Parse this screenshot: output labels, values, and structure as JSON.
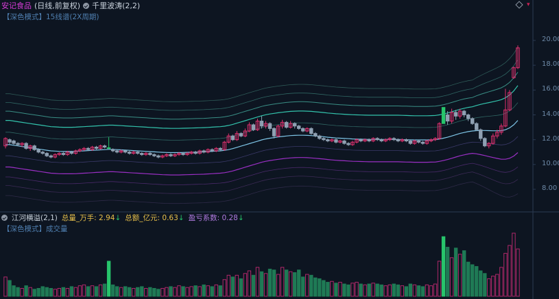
{
  "header": {
    "stock_name": "安记食品",
    "period": "(日线,前复权)",
    "indicator": "千里波涛(2,2)",
    "sub_mode": "【深色模式】",
    "sub_text": "15线谱(2X周期)"
  },
  "price_axis": {
    "ticks": [
      "20.00",
      "18.00",
      "16.00",
      "14.00",
      "12.00",
      "10.00",
      "8.00"
    ],
    "min": 6.4,
    "max": 21.6
  },
  "volume_panel": {
    "indicator": "江河横溢(2,1)",
    "vol_label": "总量_万手:",
    "vol_value": "2.94",
    "amt_label": "总额_亿元:",
    "amt_value": "0.63",
    "pl_label": "盈亏系数:",
    "pl_value": "0.28",
    "sub_mode": "【深色模式】",
    "sub_text": "成交量"
  },
  "colors": {
    "up": "#e0306e",
    "down": "#8fa0b2",
    "limit_up": "#27c46b",
    "stock_name": "#d63bd6",
    "vol_up": "#b0286a",
    "vol_down": "#1f7a55"
  },
  "chart_data": {
    "type": "candlestick",
    "candles": [
      [
        11.5,
        12.1,
        11.3,
        12.2
      ],
      [
        12.0,
        11.8,
        11.6,
        12.1
      ],
      [
        11.9,
        11.7,
        11.6,
        12.0
      ],
      [
        11.7,
        11.6,
        11.5,
        11.8
      ],
      [
        11.6,
        11.7,
        11.4,
        11.8
      ],
      [
        11.7,
        11.3,
        11.2,
        11.8
      ],
      [
        11.3,
        11.5,
        11.1,
        11.6
      ],
      [
        11.5,
        11.2,
        11.1,
        11.6
      ],
      [
        11.2,
        11.0,
        10.9,
        11.3
      ],
      [
        11.0,
        10.9,
        10.8,
        11.1
      ],
      [
        10.9,
        10.7,
        10.6,
        11.0
      ],
      [
        10.7,
        10.6,
        10.5,
        10.8
      ],
      [
        10.6,
        10.8,
        10.5,
        10.9
      ],
      [
        10.8,
        10.9,
        10.7,
        11.0
      ],
      [
        10.9,
        10.8,
        10.7,
        11.0
      ],
      [
        10.8,
        11.0,
        10.7,
        11.1
      ],
      [
        11.0,
        10.9,
        10.8,
        11.1
      ],
      [
        10.9,
        11.1,
        10.8,
        11.2
      ],
      [
        11.1,
        11.2,
        11.0,
        11.3
      ],
      [
        11.2,
        11.3,
        11.1,
        11.4
      ],
      [
        11.3,
        11.2,
        11.1,
        11.4
      ],
      [
        11.2,
        11.4,
        11.1,
        11.5
      ],
      [
        11.4,
        11.3,
        11.2,
        11.5
      ],
      [
        11.3,
        11.5,
        11.2,
        11.6
      ],
      [
        11.5,
        11.4,
        11.3,
        11.6
      ],
      [
        11.35,
        11.35,
        11.3,
        12.2
      ],
      [
        11.2,
        11.1,
        11.0,
        11.3
      ],
      [
        11.1,
        11.0,
        10.9,
        11.2
      ],
      [
        11.0,
        11.1,
        10.9,
        11.2
      ],
      [
        11.1,
        11.0,
        10.9,
        11.2
      ],
      [
        11.0,
        10.9,
        10.8,
        11.1
      ],
      [
        10.9,
        11.0,
        10.8,
        11.1
      ],
      [
        11.0,
        10.9,
        10.8,
        11.1
      ],
      [
        10.9,
        10.8,
        10.7,
        11.0
      ],
      [
        10.8,
        10.9,
        10.7,
        11.0
      ],
      [
        10.9,
        10.8,
        10.7,
        11.0
      ],
      [
        10.8,
        10.7,
        10.6,
        10.9
      ],
      [
        10.7,
        10.6,
        10.5,
        10.8
      ],
      [
        10.6,
        10.7,
        10.5,
        10.8
      ],
      [
        10.7,
        10.8,
        10.6,
        10.9
      ],
      [
        10.8,
        10.7,
        10.6,
        10.9
      ],
      [
        10.7,
        10.8,
        10.6,
        10.9
      ],
      [
        10.8,
        10.9,
        10.7,
        11.0
      ],
      [
        10.9,
        10.8,
        10.7,
        11.0
      ],
      [
        10.8,
        10.9,
        10.7,
        11.0
      ],
      [
        10.9,
        11.0,
        10.8,
        11.1
      ],
      [
        11.0,
        10.9,
        10.8,
        11.1
      ],
      [
        10.9,
        11.1,
        10.8,
        11.2
      ],
      [
        11.1,
        11.0,
        10.9,
        11.2
      ],
      [
        11.0,
        11.2,
        10.9,
        11.3
      ],
      [
        11.2,
        11.1,
        11.0,
        11.3
      ],
      [
        11.1,
        11.3,
        11.0,
        11.4
      ],
      [
        11.3,
        11.2,
        11.1,
        11.4
      ],
      [
        11.2,
        11.8,
        11.1,
        11.9
      ],
      [
        11.8,
        12.3,
        11.7,
        12.5
      ],
      [
        12.3,
        12.0,
        11.9,
        12.4
      ],
      [
        12.0,
        12.5,
        11.9,
        12.7
      ],
      [
        12.5,
        12.3,
        12.2,
        12.6
      ],
      [
        12.3,
        12.7,
        12.2,
        12.9
      ],
      [
        12.7,
        13.2,
        12.6,
        13.4
      ],
      [
        13.2,
        12.8,
        12.7,
        13.3
      ],
      [
        12.8,
        13.5,
        12.7,
        13.7
      ],
      [
        13.5,
        13.1,
        12.9,
        13.9
      ],
      [
        13.1,
        13.3,
        12.9,
        13.5
      ],
      [
        13.3,
        12.9,
        12.7,
        13.4
      ],
      [
        12.9,
        12.3,
        12.1,
        13.0
      ],
      [
        12.3,
        13.1,
        12.2,
        13.2
      ],
      [
        13.1,
        13.4,
        12.9,
        13.6
      ],
      [
        13.4,
        13.0,
        12.9,
        13.5
      ],
      [
        13.0,
        13.3,
        12.9,
        13.5
      ],
      [
        13.3,
        13.1,
        12.9,
        13.4
      ],
      [
        13.1,
        12.9,
        12.8,
        13.2
      ],
      [
        12.9,
        12.7,
        12.6,
        13.0
      ],
      [
        12.7,
        12.9,
        12.6,
        13.0
      ],
      [
        12.9,
        12.5,
        12.4,
        13.0
      ],
      [
        12.5,
        12.3,
        12.2,
        12.6
      ],
      [
        12.3,
        12.1,
        12.0,
        12.4
      ],
      [
        12.1,
        12.0,
        11.9,
        12.2
      ],
      [
        12.0,
        11.9,
        11.8,
        12.1
      ],
      [
        11.9,
        12.0,
        11.8,
        12.1
      ],
      [
        12.0,
        11.8,
        11.7,
        12.1
      ],
      [
        11.8,
        11.9,
        11.7,
        12.0
      ],
      [
        11.9,
        11.7,
        11.6,
        12.0
      ],
      [
        11.7,
        11.6,
        11.5,
        11.8
      ],
      [
        11.6,
        11.8,
        11.5,
        11.9
      ],
      [
        11.8,
        12.0,
        11.7,
        12.1
      ],
      [
        12.0,
        11.9,
        11.8,
        12.1
      ],
      [
        11.9,
        12.0,
        11.8,
        12.1
      ],
      [
        12.0,
        11.9,
        11.8,
        12.1
      ],
      [
        11.9,
        12.1,
        11.8,
        12.2
      ],
      [
        12.1,
        12.0,
        11.9,
        12.2
      ],
      [
        12.0,
        11.9,
        11.8,
        12.1
      ],
      [
        11.9,
        12.0,
        11.8,
        12.1
      ],
      [
        12.0,
        12.1,
        11.9,
        12.2
      ],
      [
        12.1,
        12.0,
        11.9,
        12.2
      ],
      [
        12.0,
        11.9,
        11.8,
        12.1
      ],
      [
        11.9,
        12.0,
        11.8,
        12.1
      ],
      [
        12.0,
        11.9,
        11.8,
        12.1
      ],
      [
        11.9,
        11.7,
        11.6,
        12.0
      ],
      [
        11.7,
        11.9,
        11.6,
        12.0
      ],
      [
        11.9,
        11.8,
        11.7,
        12.0
      ],
      [
        11.8,
        11.7,
        11.6,
        11.9
      ],
      [
        11.7,
        11.9,
        11.6,
        12.0
      ],
      [
        11.9,
        12.0,
        11.8,
        12.1
      ],
      [
        12.0,
        12.1,
        11.9,
        12.2
      ],
      [
        12.1,
        13.3,
        12.0,
        13.4
      ],
      [
        13.3,
        14.6,
        13.3,
        14.6
      ],
      [
        14.0,
        13.5,
        13.2,
        14.3
      ],
      [
        13.5,
        14.2,
        13.3,
        14.5
      ],
      [
        14.2,
        13.9,
        13.6,
        14.4
      ],
      [
        13.9,
        14.3,
        13.7,
        14.5
      ],
      [
        14.3,
        14.0,
        13.8,
        14.4
      ],
      [
        14.0,
        13.7,
        13.5,
        14.1
      ],
      [
        13.7,
        13.3,
        13.2,
        13.8
      ],
      [
        13.3,
        12.8,
        12.7,
        13.4
      ],
      [
        12.8,
        12.1,
        11.9,
        12.9
      ],
      [
        12.1,
        11.5,
        11.4,
        12.2
      ],
      [
        11.5,
        11.7,
        11.3,
        11.8
      ],
      [
        11.7,
        12.3,
        11.6,
        12.5
      ],
      [
        12.3,
        12.6,
        12.1,
        12.8
      ],
      [
        12.6,
        13.1,
        12.4,
        13.3
      ],
      [
        13.1,
        14.4,
        13.0,
        16.1
      ],
      [
        14.4,
        15.8,
        14.3,
        16.0
      ],
      [
        17.0,
        17.8,
        16.9,
        17.9
      ],
      [
        17.8,
        19.4,
        17.7,
        19.6
      ]
    ],
    "volume": [
      22,
      18,
      12,
      10,
      9,
      12,
      10,
      8,
      9,
      11,
      10,
      9,
      8,
      9,
      10,
      9,
      11,
      10,
      12,
      13,
      11,
      12,
      11,
      13,
      14,
      40,
      13,
      11,
      10,
      11,
      10,
      9,
      10,
      11,
      9,
      10,
      9,
      8,
      9,
      10,
      11,
      10,
      12,
      11,
      10,
      11,
      12,
      11,
      13,
      12,
      11,
      13,
      12,
      19,
      24,
      22,
      24,
      20,
      26,
      29,
      24,
      33,
      28,
      26,
      31,
      30,
      25,
      33,
      30,
      28,
      27,
      30,
      22,
      25,
      24,
      21,
      20,
      18,
      16,
      17,
      15,
      16,
      14,
      13,
      15,
      16,
      14,
      13,
      14,
      15,
      14,
      13,
      12,
      13,
      14,
      13,
      12,
      11,
      14,
      13,
      12,
      11,
      13,
      12,
      14,
      40,
      68,
      56,
      44,
      55,
      48,
      52,
      39,
      36,
      34,
      29,
      26,
      20,
      23,
      25,
      33,
      49,
      58,
      72,
      54
    ],
    "ma": [
      11.6,
      11.6,
      11.55,
      11.5,
      11.45,
      11.4,
      11.35,
      11.3,
      11.25,
      11.2,
      11.15,
      11.1,
      11.08,
      11.06,
      11.05,
      11.05,
      11.05,
      11.06,
      11.08,
      11.1,
      11.12,
      11.14,
      11.16,
      11.18,
      11.2,
      11.22,
      11.22,
      11.2,
      11.18,
      11.16,
      11.14,
      11.12,
      11.1,
      11.08,
      11.06,
      11.04,
      11.02,
      11.0,
      10.98,
      10.97,
      10.96,
      10.96,
      10.96,
      10.97,
      10.98,
      10.99,
      11.0,
      11.01,
      11.02,
      11.04,
      11.06,
      11.08,
      11.1,
      11.14,
      11.2,
      11.28,
      11.38,
      11.48,
      11.58,
      11.68,
      11.78,
      11.88,
      11.98,
      12.06,
      12.12,
      12.17,
      12.22,
      12.26,
      12.3,
      12.33,
      12.35,
      12.36,
      12.36,
      12.35,
      12.33,
      12.3,
      12.27,
      12.24,
      12.2,
      12.17,
      12.14,
      12.12,
      12.1,
      12.08,
      12.06,
      12.05,
      12.04,
      12.03,
      12.02,
      12.02,
      12.02,
      12.02,
      12.02,
      12.02,
      12.02,
      12.02,
      12.01,
      12.0,
      11.99,
      11.98,
      11.98,
      11.98,
      11.98,
      11.99,
      12.0,
      12.05,
      12.12,
      12.2,
      12.3,
      12.4,
      12.5,
      12.58,
      12.65,
      12.7,
      12.73,
      12.74,
      12.74,
      12.73,
      12.72,
      12.72,
      12.73,
      12.8,
      12.95,
      13.2,
      13.55
    ]
  }
}
